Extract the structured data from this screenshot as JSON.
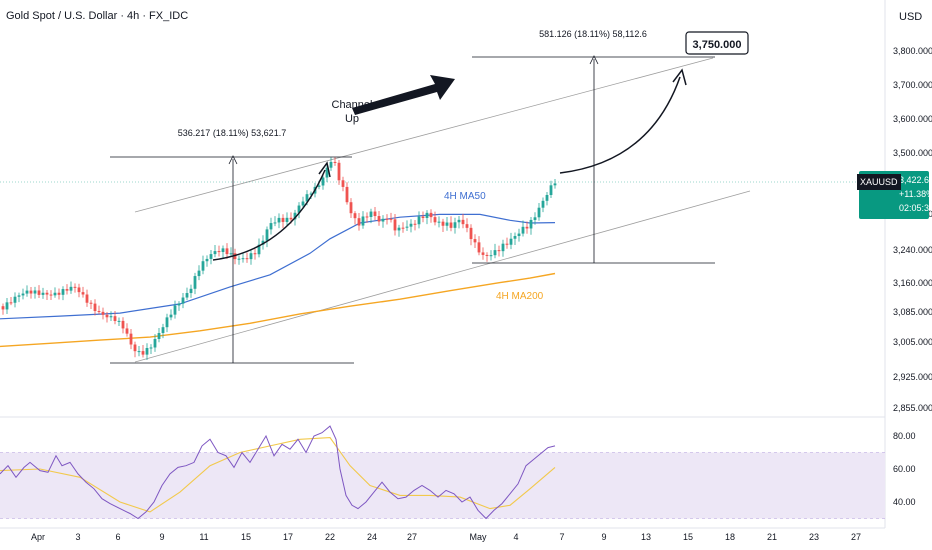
{
  "header": {
    "title": "Gold Spot / U.S. Dollar · 4h · FX_IDC"
  },
  "axis": {
    "currency": "USD"
  },
  "price_badge": {
    "symbol": "XAUUSD",
    "price": "3,422.690",
    "change": "+11.38%",
    "countdown": "02:05:36"
  },
  "annotations": {
    "measure_left": "536.217 (18.11%) 53,621.7",
    "measure_right": "581.126 (18.11%) 58,112.6",
    "target": "3,750.000",
    "channel_line1": "Channel",
    "channel_line2": "Up",
    "ma50_label": "4H MA50",
    "ma200_label": "4H MA200"
  },
  "colors": {
    "bull": "#26a69a",
    "bear": "#ef5350",
    "ma50": "#3f6fd1",
    "ma200": "#f5a623",
    "rsi": "#7e57c2",
    "rsi_ma": "#f2c94c",
    "rsi_band": "#ede7f6",
    "channel": "#9e9e9e",
    "price_line": "#089981"
  },
  "chart_data": [
    {
      "type": "candlestick",
      "title": "Gold Spot / U.S. Dollar · 4h · FX_IDC",
      "y_ticks": [
        3800,
        3700,
        3600,
        3500,
        3320,
        3240,
        3160,
        3085,
        3005,
        2925,
        2855
      ],
      "y_tick_labels": [
        "3,800.000",
        "3,700.000",
        "3,600.000",
        "3,500.000",
        "3,320.000",
        "3,240.000",
        "3,160.000",
        "3,085.000",
        "3,005.000",
        "2,925.000",
        "2,855.000"
      ],
      "x_ticks": [
        "Apr",
        "3",
        "6",
        "9",
        "11",
        "15",
        "17",
        "22",
        "24",
        "27",
        "May",
        "4",
        "7",
        "9",
        "13",
        "15",
        "18",
        "21",
        "23",
        "27"
      ],
      "close_path": [
        [
          0,
          3100
        ],
        [
          8,
          3112
        ],
        [
          18,
          3121
        ],
        [
          30,
          3131
        ],
        [
          45,
          3140
        ],
        [
          60,
          3136
        ],
        [
          75,
          3140
        ],
        [
          90,
          3110
        ],
        [
          105,
          3080
        ],
        [
          115,
          3060
        ],
        [
          125,
          3030
        ],
        [
          132,
          2990
        ],
        [
          140,
          2985
        ],
        [
          150,
          3000
        ],
        [
          160,
          3030
        ],
        [
          170,
          3070
        ],
        [
          180,
          3110
        ],
        [
          190,
          3150
        ],
        [
          198,
          3200
        ],
        [
          206,
          3220
        ],
        [
          215,
          3228
        ],
        [
          225,
          3232
        ],
        [
          235,
          3225
        ],
        [
          245,
          3228
        ],
        [
          255,
          3235
        ],
        [
          262,
          3250
        ],
        [
          268,
          3282
        ],
        [
          275,
          3300
        ],
        [
          282,
          3310
        ],
        [
          292,
          3320
        ],
        [
          302,
          3360
        ],
        [
          312,
          3380
        ],
        [
          320,
          3400
        ],
        [
          328,
          3460
        ],
        [
          333,
          3495
        ],
        [
          338,
          3440
        ],
        [
          343,
          3405
        ],
        [
          350,
          3330
        ],
        [
          358,
          3290
        ],
        [
          365,
          3305
        ],
        [
          372,
          3320
        ],
        [
          380,
          3305
        ],
        [
          388,
          3325
        ],
        [
          396,
          3290
        ],
        [
          404,
          3288
        ],
        [
          412,
          3286
        ],
        [
          420,
          3305
        ],
        [
          428,
          3325
        ],
        [
          436,
          3310
        ],
        [
          444,
          3305
        ],
        [
          452,
          3290
        ],
        [
          460,
          3300
        ],
        [
          468,
          3275
        ],
        [
          476,
          3250
        ],
        [
          484,
          3232
        ],
        [
          492,
          3238
        ],
        [
          500,
          3242
        ],
        [
          508,
          3248
        ],
        [
          516,
          3265
        ],
        [
          522,
          3285
        ],
        [
          528,
          3300
        ],
        [
          534,
          3320
        ],
        [
          540,
          3350
        ],
        [
          546,
          3375
        ],
        [
          552,
          3400
        ],
        [
          556,
          3410
        ]
      ],
      "series": [
        {
          "name": "4H MA50",
          "values": [
            [
              0,
              3067
            ],
            [
              60,
              3074
            ],
            [
              120,
              3082
            ],
            [
              180,
              3106
            ],
            [
              230,
              3150
            ],
            [
              270,
              3180
            ],
            [
              310,
              3232
            ],
            [
              330,
              3265
            ],
            [
              360,
              3300
            ],
            [
              400,
              3313
            ],
            [
              440,
              3319
            ],
            [
              480,
              3319
            ],
            [
              510,
              3306
            ],
            [
              530,
              3300
            ],
            [
              555,
              3301
            ]
          ]
        },
        {
          "name": "4H MA200",
          "values": [
            [
              0,
              2995
            ],
            [
              50,
              3002
            ],
            [
              100,
              3010
            ],
            [
              150,
              3018
            ],
            [
              200,
              3035
            ],
            [
              250,
              3055
            ],
            [
              300,
              3080
            ],
            [
              350,
              3100
            ],
            [
              400,
              3118
            ],
            [
              450,
              3140
            ],
            [
              500,
              3161
            ],
            [
              530,
              3172
            ],
            [
              555,
              3183
            ]
          ]
        }
      ],
      "annotations": [
        {
          "text": "536.217 (18.11%) 53,621.7",
          "from": 2976,
          "to": 3512
        },
        {
          "text": "581.126 (18.11%) 58,112.6",
          "from": 3219,
          "to": 3800
        },
        {
          "text": "3,750.000",
          "value": 3750
        }
      ]
    },
    {
      "type": "line",
      "title": "RSI",
      "y_ticks": [
        80,
        60,
        40
      ],
      "y_tick_labels": [
        "80.00",
        "60.00",
        "40.00"
      ],
      "band": [
        30,
        70
      ],
      "series": [
        {
          "name": "RSI",
          "values": [
            [
              0,
              57
            ],
            [
              8,
              62
            ],
            [
              16,
              55
            ],
            [
              24,
              61
            ],
            [
              30,
              64
            ],
            [
              40,
              59
            ],
            [
              48,
              58
            ],
            [
              56,
              68
            ],
            [
              62,
              62
            ],
            [
              70,
              64
            ],
            [
              78,
              57
            ],
            [
              86,
              52
            ],
            [
              94,
              48
            ],
            [
              102,
              42
            ],
            [
              110,
              39
            ],
            [
              120,
              36
            ],
            [
              130,
              33
            ],
            [
              138,
              30
            ],
            [
              146,
              34
            ],
            [
              154,
              40
            ],
            [
              162,
              50
            ],
            [
              170,
              57
            ],
            [
              178,
              61
            ],
            [
              186,
              62
            ],
            [
              194,
              64
            ],
            [
              202,
              74
            ],
            [
              210,
              78
            ],
            [
              218,
              70
            ],
            [
              226,
              68
            ],
            [
              234,
              61
            ],
            [
              242,
              70
            ],
            [
              250,
              64
            ],
            [
              258,
              72
            ],
            [
              266,
              80
            ],
            [
              274,
              68
            ],
            [
              282,
              75
            ],
            [
              290,
              72
            ],
            [
              298,
              78
            ],
            [
              306,
              70
            ],
            [
              314,
              80
            ],
            [
              322,
              82
            ],
            [
              330,
              86
            ],
            [
              336,
              78
            ],
            [
              340,
              60
            ],
            [
              346,
              44
            ],
            [
              352,
              38
            ],
            [
              358,
              36
            ],
            [
              366,
              40
            ],
            [
              374,
              46
            ],
            [
              382,
              52
            ],
            [
              390,
              46
            ],
            [
              398,
              42
            ],
            [
              406,
              43
            ],
            [
              414,
              47
            ],
            [
              422,
              50
            ],
            [
              430,
              47
            ],
            [
              438,
              43
            ],
            [
              446,
              47
            ],
            [
              454,
              45
            ],
            [
              462,
              40
            ],
            [
              470,
              43
            ],
            [
              478,
              35
            ],
            [
              486,
              30
            ],
            [
              494,
              35
            ],
            [
              502,
              39
            ],
            [
              510,
              45
            ],
            [
              518,
              51
            ],
            [
              526,
              62
            ],
            [
              534,
              66
            ],
            [
              542,
              70
            ],
            [
              548,
              73
            ],
            [
              555,
              74
            ]
          ]
        },
        {
          "name": "RSI MA",
          "values": [
            [
              0,
              59
            ],
            [
              40,
              60
            ],
            [
              80,
              55
            ],
            [
              120,
              40
            ],
            [
              150,
              34
            ],
            [
              180,
              46
            ],
            [
              210,
              62
            ],
            [
              240,
              70
            ],
            [
              270,
              74
            ],
            [
              300,
              78
            ],
            [
              330,
              79
            ],
            [
              350,
              62
            ],
            [
              370,
              50
            ],
            [
              400,
              44
            ],
            [
              430,
              44
            ],
            [
              460,
              43
            ],
            [
              490,
              36
            ],
            [
              510,
              38
            ],
            [
              530,
              48
            ],
            [
              555,
              61
            ]
          ]
        }
      ]
    }
  ]
}
